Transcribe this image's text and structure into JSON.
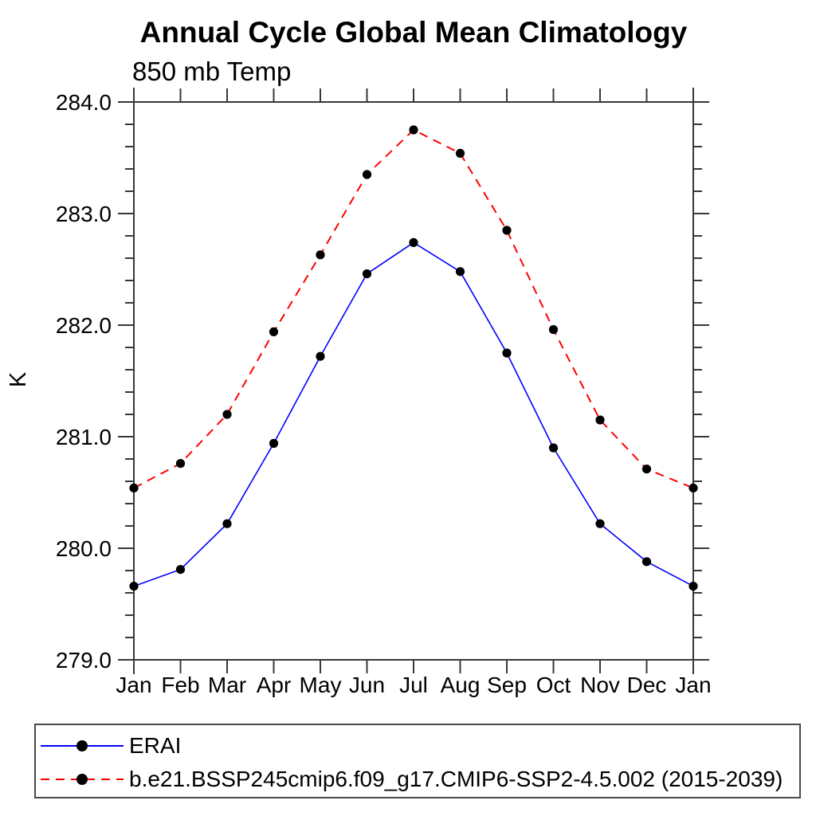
{
  "chart_data": {
    "type": "line",
    "title": "Annual Cycle Global Mean Climatology",
    "subtitle": "850 mb Temp",
    "ylabel": "K",
    "xlabel": "",
    "categories": [
      "Jan",
      "Feb",
      "Mar",
      "Apr",
      "May",
      "Jun",
      "Jul",
      "Aug",
      "Sep",
      "Oct",
      "Nov",
      "Dec",
      "Jan"
    ],
    "ylim": [
      279.0,
      284.0
    ],
    "ytick_major": 1.0,
    "ytick_minor": 0.2,
    "ytick_labels": [
      "279.0",
      "280.0",
      "281.0",
      "282.0",
      "283.0",
      "284.0"
    ],
    "grid": false,
    "legend_position": "bottom-left-box",
    "series": [
      {
        "name": "ERAI",
        "color": "#0000ff",
        "line_style": "solid",
        "marker": "filled-circle",
        "marker_color": "#000000",
        "values": [
          279.66,
          279.81,
          280.22,
          280.94,
          281.72,
          282.46,
          282.74,
          282.48,
          281.75,
          280.9,
          280.22,
          279.88,
          279.66
        ]
      },
      {
        "name": "b.e21.BSSP245cmip6.f09_g17.CMIP6-SSP2-4.5.002 (2015-2039)",
        "color": "#ff0000",
        "line_style": "dashed",
        "marker": "filled-circle",
        "marker_color": "#000000",
        "values": [
          280.54,
          280.76,
          281.2,
          281.94,
          282.63,
          283.35,
          283.75,
          283.54,
          282.85,
          281.96,
          281.15,
          280.71,
          280.54
        ]
      }
    ]
  }
}
